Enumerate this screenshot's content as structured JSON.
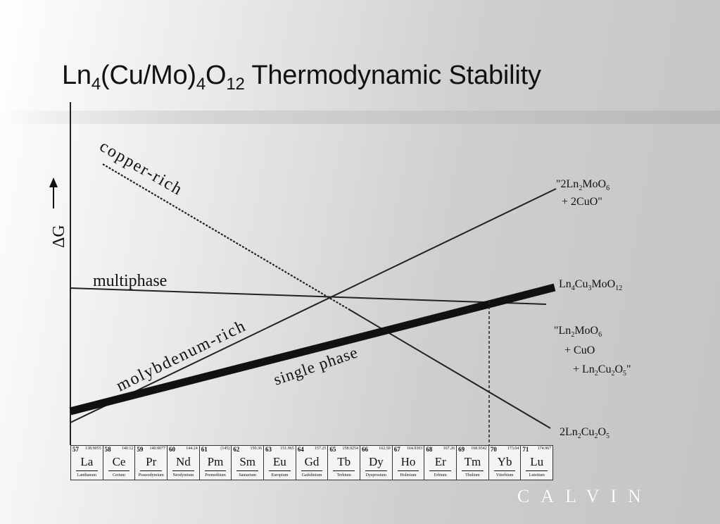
{
  "title": {
    "prefix": "Ln",
    "sub1": "4",
    "mid": "(Cu/Mo)",
    "sub2": "4",
    "o": "O",
    "sub3": "12",
    "rest": " Thermodynamic Stability"
  },
  "axis": {
    "ylabel": "ΔG"
  },
  "regions": {
    "copper_rich": "copper-rich",
    "multiphase": "multiphase",
    "molybdenum_rich": "molybdenum-rich",
    "single_phase": "single phase"
  },
  "labels": {
    "top": {
      "l1_a": "\"2Ln",
      "l1_s1": "2",
      "l1_b": "MoO",
      "l1_s2": "6",
      "l2": "+ 2CuO\""
    },
    "main": {
      "a": "Ln",
      "s1": "4",
      "b": "Cu",
      "s2": "3",
      "c": "MoO",
      "s3": "12"
    },
    "mid": {
      "l1_a": "\"Ln",
      "l1_s1": "2",
      "l1_b": "MoO",
      "l1_s2": "6",
      "l2": "+ CuO",
      "l3_a": "+ Ln",
      "l3_s1": "2",
      "l3_b": "Cu",
      "l3_s2": "2",
      "l3_c": "O",
      "l3_s3": "5",
      "l3_d": "\""
    },
    "bottom": {
      "a": "2Ln",
      "s1": "2",
      "b": "Cu",
      "s2": "2",
      "c": "O",
      "s3": "5"
    }
  },
  "elements": [
    {
      "num": "57",
      "mass": "138.9055",
      "sym": "La",
      "name": "Lanthanum"
    },
    {
      "num": "58",
      "mass": "140.12",
      "sym": "Ce",
      "name": "Cerium"
    },
    {
      "num": "59",
      "mass": "140.9077",
      "sym": "Pr",
      "name": "Praseodymium"
    },
    {
      "num": "60",
      "mass": "144.24",
      "sym": "Nd",
      "name": "Neodymium"
    },
    {
      "num": "61",
      "mass": "(145)",
      "sym": "Pm",
      "name": "Promethium"
    },
    {
      "num": "62",
      "mass": "150.36",
      "sym": "Sm",
      "name": "Samarium"
    },
    {
      "num": "63",
      "mass": "151.965",
      "sym": "Eu",
      "name": "Europium"
    },
    {
      "num": "64",
      "mass": "157.25",
      "sym": "Gd",
      "name": "Gadolinium"
    },
    {
      "num": "65",
      "mass": "158.9254",
      "sym": "Tb",
      "name": "Terbium"
    },
    {
      "num": "66",
      "mass": "162.50",
      "sym": "Dy",
      "name": "Dysprosium"
    },
    {
      "num": "67",
      "mass": "164.9303",
      "sym": "Ho",
      "name": "Holmium"
    },
    {
      "num": "68",
      "mass": "167.26",
      "sym": "Er",
      "name": "Erbium"
    },
    {
      "num": "69",
      "mass": "168.9342",
      "sym": "Tm",
      "name": "Thulium"
    },
    {
      "num": "70",
      "mass": "173.04",
      "sym": "Yb",
      "name": "Ytterbium"
    },
    {
      "num": "71",
      "mass": "174.967",
      "sym": "Lu",
      "name": "Lutetium"
    }
  ],
  "brand": "CALVIN"
}
